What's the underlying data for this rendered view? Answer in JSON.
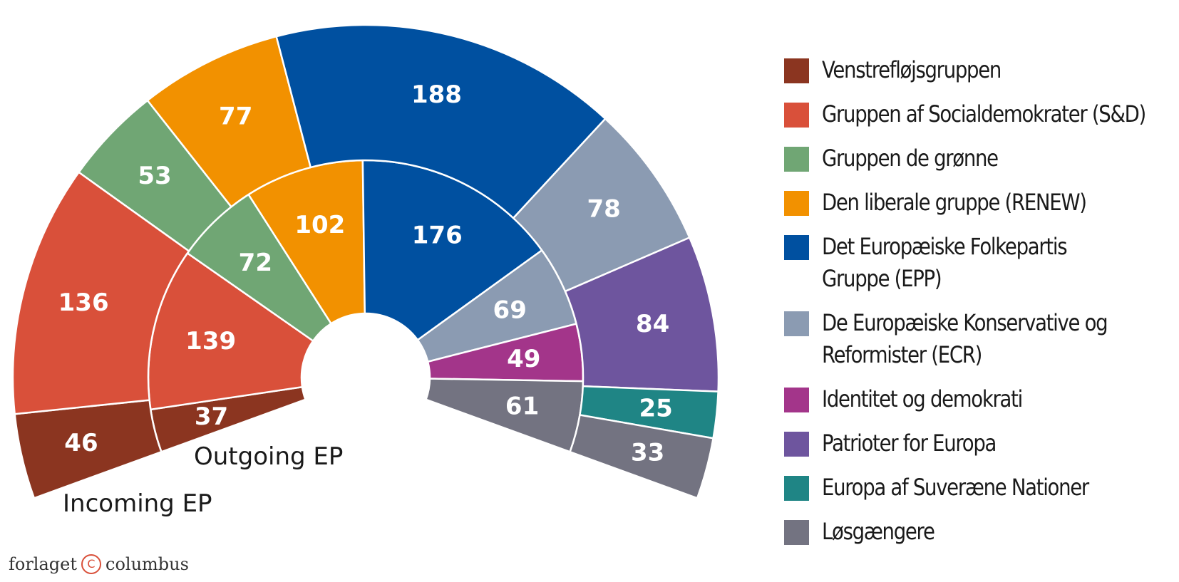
{
  "chart_data": {
    "type": "parliament-donut",
    "title": "",
    "center": [
      513,
      530
    ],
    "angle_start_deg": 200,
    "angle_end_deg": -20,
    "rings": [
      {
        "name": "Outgoing EP",
        "inner_radius": 90,
        "outer_radius": 305,
        "values": [
          37,
          139,
          72,
          102,
          176,
          69,
          49,
          61
        ],
        "groups": [
          "Venstrefløjsgruppen",
          "Gruppen af Socialdemokrater (S&D)",
          "Gruppen de grønne",
          "Den liberale gruppe (RENEW)",
          "Det Europæiske Folkepartis Gruppe (EPP)",
          "De Europæiske Konservative og Reformister (ECR)",
          "Identitet og demokrati",
          "Løsgængere"
        ],
        "colors": [
          "#8b3520",
          "#d9503a",
          "#70a674",
          "#f29100",
          "#0050a0",
          "#8b9bb2",
          "#a3358a",
          "#737381"
        ]
      },
      {
        "name": "Incoming EP",
        "inner_radius": 305,
        "outer_radius": 495,
        "values": [
          46,
          136,
          53,
          77,
          188,
          78,
          84,
          25,
          33
        ],
        "groups": [
          "Venstrefløjsgruppen",
          "Gruppen af Socialdemokrater (S&D)",
          "Gruppen de grønne",
          "Den liberale gruppe (RENEW)",
          "Det Europæiske Folkepartis Gruppe (EPP)",
          "De Europæiske Konservative og Reformister (ECR)",
          "Patrioter for Europa",
          "Europa af Suveræne Nationer",
          "Løsgængere"
        ],
        "colors": [
          "#8b3520",
          "#d9503a",
          "#70a674",
          "#f29100",
          "#0050a0",
          "#8b9bb2",
          "#6e559e",
          "#1f8585",
          "#737381"
        ]
      }
    ],
    "ring_labels": {
      "outgoing": "Outgoing EP",
      "incoming": "Incoming EP"
    },
    "legend": [
      {
        "label": "Venstrefløjsgruppen",
        "color": "#8b3520"
      },
      {
        "label": "Gruppen af Socialdemokrater (S&D)",
        "color": "#d9503a"
      },
      {
        "label": "Gruppen de grønne",
        "color": "#70a674"
      },
      {
        "label": "Den liberale gruppe (RENEW)",
        "color": "#f29100"
      },
      {
        "label": "Det Europæiske Folkepartis Gruppe (EPP)",
        "label_lines": [
          "Det Europæiske Folkepartis",
          "Gruppe (EPP)"
        ],
        "color": "#0050a0"
      },
      {
        "label": "De Europæiske Konservative og Reformister (ECR)",
        "label_lines": [
          "De Europæiske Konservative og",
          "Reformister (ECR)"
        ],
        "color": "#8b9bb2"
      },
      {
        "label": "Identitet og demokrati",
        "color": "#a3358a"
      },
      {
        "label": "Patrioter for Europa",
        "color": "#6e559e"
      },
      {
        "label": "Europa af Suveræne Nationer",
        "color": "#1f8585"
      },
      {
        "label": "Løsgængere",
        "color": "#737381"
      }
    ],
    "legend_position": "right"
  },
  "legend": {
    "items": [
      {
        "lines": [
          "Venstrefløjsgruppen"
        ],
        "color": "#8b3520"
      },
      {
        "lines": [
          "Gruppen af Socialdemokrater (S&D)"
        ],
        "color": "#d9503a"
      },
      {
        "lines": [
          "Gruppen de grønne"
        ],
        "color": "#70a674"
      },
      {
        "lines": [
          "Den liberale gruppe (RENEW)"
        ],
        "color": "#f29100"
      },
      {
        "lines": [
          "Det Europæiske Folkepartis",
          "Gruppe (EPP)"
        ],
        "color": "#0050a0"
      },
      {
        "lines": [
          "De Europæiske Konservative og",
          "Reformister (ECR)"
        ],
        "color": "#8b9bb2"
      },
      {
        "lines": [
          "Identitet og demokrati"
        ],
        "color": "#a3358a"
      },
      {
        "lines": [
          "Patrioter for Europa"
        ],
        "color": "#6e559e"
      },
      {
        "lines": [
          "Europa af Suveræne Nationer"
        ],
        "color": "#1f8585"
      },
      {
        "lines": [
          "Løsgængere"
        ],
        "color": "#737381"
      }
    ]
  },
  "credit": {
    "left": "forlaget",
    "symbol": "C",
    "right": "columbus"
  }
}
